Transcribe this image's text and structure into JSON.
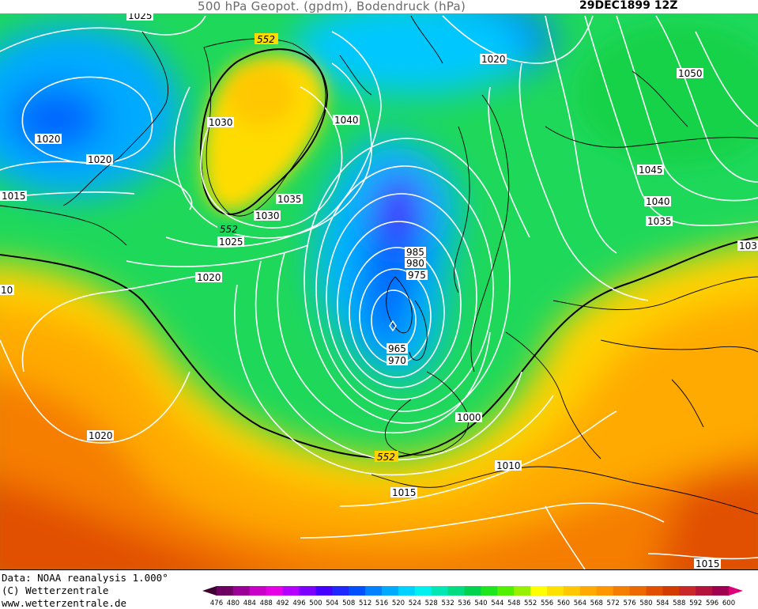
{
  "title": "500 hPa Geopot. (gpdm), Bodendruck (hPa)",
  "date": "29DEC1899 12Z",
  "footer": {
    "line1": "Data: NOAA reanalysis 1.000°",
    "line2": "(C) Wetterzentrale",
    "line3": "www.wetterzentrale.de"
  },
  "colorbar": {
    "ticks": [
      "476",
      "480",
      "484",
      "488",
      "492",
      "496",
      "500",
      "504",
      "508",
      "512",
      "516",
      "520",
      "524",
      "528",
      "532",
      "536",
      "540",
      "544",
      "548",
      "552",
      "556",
      "560",
      "564",
      "568",
      "572",
      "576",
      "580",
      "584",
      "588",
      "592",
      "596",
      "600"
    ],
    "colors": [
      "#3c0032",
      "#6e0064",
      "#9b0096",
      "#c800c8",
      "#e600e6",
      "#b400ff",
      "#7d00ff",
      "#4600ff",
      "#1e28ff",
      "#0050ff",
      "#0082ff",
      "#00aaff",
      "#00d2ff",
      "#00f0f0",
      "#00e6b4",
      "#00dc82",
      "#00d250",
      "#1ee61e",
      "#50f000",
      "#96f000",
      "#ffff00",
      "#ffe100",
      "#ffc800",
      "#ffaa00",
      "#ff9600",
      "#f57d00",
      "#eb6900",
      "#e15000",
      "#d23c00",
      "#c82828",
      "#b4143c",
      "#a00050",
      "#dc0078"
    ]
  },
  "pressure_labels": [
    "1025",
    "1020",
    "1020",
    "1030",
    "1015",
    "1020",
    "1025",
    "1030",
    "1035",
    "1040",
    "1020",
    "1050",
    "1045",
    "1040",
    "1035",
    "103",
    "985",
    "980",
    "975",
    "965",
    "970",
    "1000",
    "1010",
    "1015",
    "1020",
    "1015",
    "10"
  ],
  "geopotential_labels": [
    "552",
    "552",
    "552"
  ]
}
